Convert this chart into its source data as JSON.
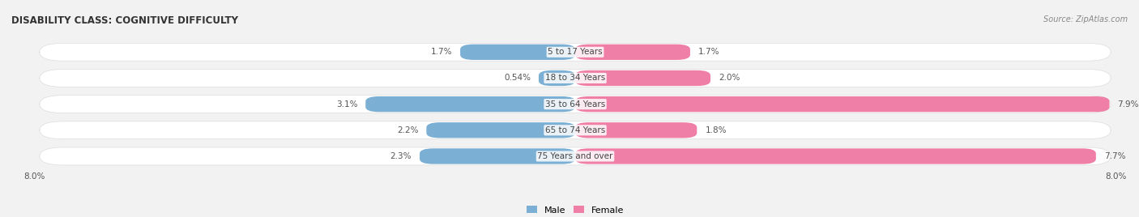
{
  "title": "DISABILITY CLASS: COGNITIVE DIFFICULTY",
  "source": "Source: ZipAtlas.com",
  "categories": [
    "5 to 17 Years",
    "18 to 34 Years",
    "35 to 64 Years",
    "65 to 74 Years",
    "75 Years and over"
  ],
  "male_values": [
    1.7,
    0.54,
    3.1,
    2.2,
    2.3
  ],
  "female_values": [
    1.7,
    2.0,
    7.9,
    1.8,
    7.7
  ],
  "male_labels": [
    "1.7%",
    "0.54%",
    "3.1%",
    "2.2%",
    "2.3%"
  ],
  "female_labels": [
    "1.7%",
    "2.0%",
    "7.9%",
    "1.8%",
    "7.7%"
  ],
  "male_color": "#7bafd4",
  "female_color": "#f07fa8",
  "male_label": "Male",
  "female_label": "Female",
  "x_max": 8.0,
  "bg_color": "#f2f2f2",
  "bar_bg_color": "#ffffff",
  "title_fontsize": 8.5,
  "source_fontsize": 7,
  "label_fontsize": 7.5,
  "category_fontsize": 7.5,
  "axis_label_fontsize": 7.5,
  "bar_height": 0.68
}
